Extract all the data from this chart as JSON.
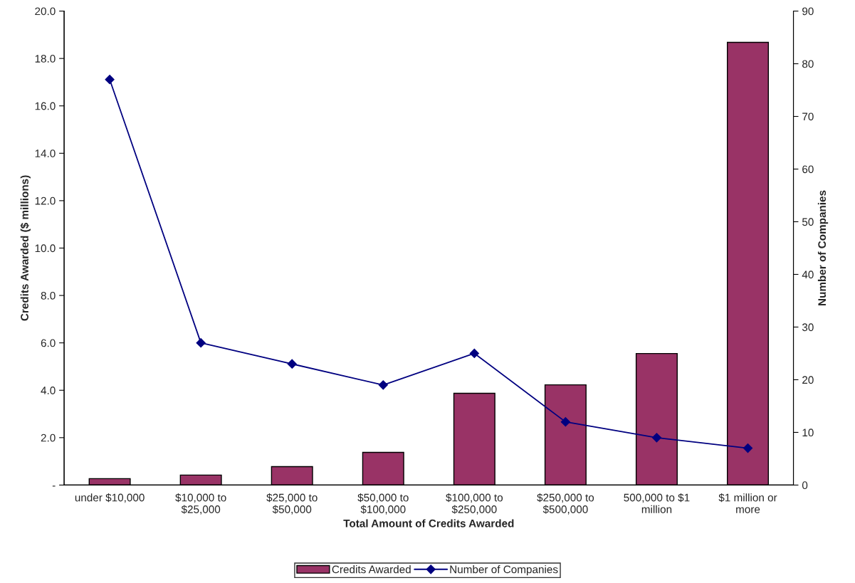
{
  "chart_data": {
    "type": "bar",
    "xlabel": "Total Amount of Credits Awarded",
    "ylabel": "Credits Awarded ($ millions)",
    "y2label": "Number of Companies",
    "categories": [
      "under $10,000",
      "$10,000 to\n$25,000",
      "$25,000 to\n$50,000",
      "$50,000 to\n$100,000",
      "$100,000 to\n$250,000",
      "$250,000 to\n$500,000",
      "500,000 to $1\nmillion",
      "$1 million or\nmore"
    ],
    "series": [
      {
        "name": "Credits Awarded",
        "color": "#993366",
        "values": [
          0.27,
          0.42,
          0.78,
          1.38,
          3.87,
          4.23,
          5.55,
          18.68
        ]
      },
      {
        "name": "Number of Companies",
        "type": "line",
        "axis": "y2",
        "color": "#000080",
        "marker": "diamond",
        "values": [
          77,
          27,
          23,
          19,
          25,
          12,
          9,
          7
        ]
      }
    ],
    "ylim": [
      0,
      20
    ],
    "yticks": [
      {
        "value": 0,
        "label": "-"
      },
      {
        "value": 2,
        "label": "2.0"
      },
      {
        "value": 4,
        "label": "4.0"
      },
      {
        "value": 6,
        "label": "6.0"
      },
      {
        "value": 8,
        "label": "8.0"
      },
      {
        "value": 10,
        "label": "10.0"
      },
      {
        "value": 12,
        "label": "12.0"
      },
      {
        "value": 14,
        "label": "14.0"
      },
      {
        "value": 16,
        "label": "16.0"
      },
      {
        "value": 18,
        "label": "18.0"
      },
      {
        "value": 20,
        "label": "20.0"
      }
    ],
    "y2lim": [
      0,
      90
    ],
    "y2ticks": [
      0,
      10,
      20,
      30,
      40,
      50,
      60,
      70,
      80,
      90
    ],
    "grid": false,
    "legend": "bottom"
  }
}
